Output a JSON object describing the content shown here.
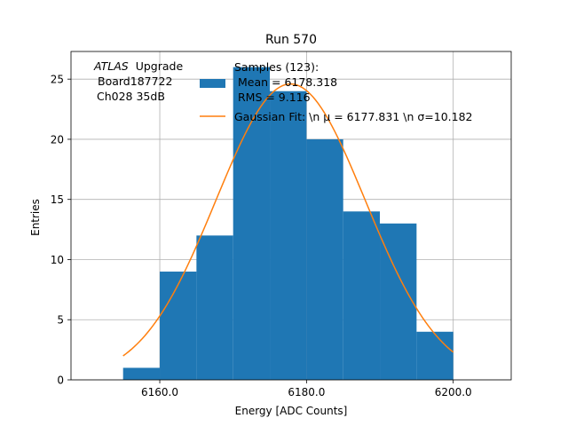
{
  "chart_data": {
    "type": "bar",
    "title": "Run 570",
    "xlabel": "Energy [ADC Counts]",
    "ylabel": "Entries",
    "xlim": [
      6147.9,
      6207.9
    ],
    "ylim": [
      0,
      27.3
    ],
    "grid": true,
    "bins": [
      {
        "x0": 6155,
        "x1": 6160,
        "count": 1
      },
      {
        "x0": 6160,
        "x1": 6165,
        "count": 9
      },
      {
        "x0": 6165,
        "x1": 6170,
        "count": 12
      },
      {
        "x0": 6170,
        "x1": 6175,
        "count": 26
      },
      {
        "x0": 6175,
        "x1": 6180,
        "count": 24
      },
      {
        "x0": 6180,
        "x1": 6185,
        "count": 20
      },
      {
        "x0": 6185,
        "x1": 6190,
        "count": 14
      },
      {
        "x0": 6190,
        "x1": 6195,
        "count": 13
      },
      {
        "x0": 6195,
        "x1": 6200,
        "count": 4
      }
    ],
    "x_ticks": [
      {
        "value": 6160,
        "label": "6160.0"
      },
      {
        "value": 6180,
        "label": "6180.0"
      },
      {
        "value": 6200,
        "label": "6200.0"
      }
    ],
    "y_ticks": [
      {
        "value": 0,
        "label": "0"
      },
      {
        "value": 5,
        "label": "5"
      },
      {
        "value": 10,
        "label": "10"
      },
      {
        "value": 15,
        "label": "15"
      },
      {
        "value": 20,
        "label": "20"
      },
      {
        "value": 25,
        "label": "25"
      }
    ],
    "fit": {
      "mu": 6177.831,
      "sigma": 10.182,
      "amplitude": 24.6,
      "x_range": [
        6155,
        6200
      ]
    },
    "colors": {
      "histogram": "#1f77b4",
      "fit": "#ff7f0e",
      "grid": "#b0b0b0"
    },
    "legend": {
      "position": "top",
      "hist_lines": [
        "Samples (123):",
        " Mean = 6178.318",
        " RMS = 9.116"
      ],
      "fit_label": "Gaussian Fit: \\n μ = 6177.831 \\n σ=10.182"
    },
    "annotation": {
      "experiment": "ATLAS",
      "label": "Upgrade",
      "board": "Board187722",
      "channel": "Ch028 35dB"
    }
  }
}
